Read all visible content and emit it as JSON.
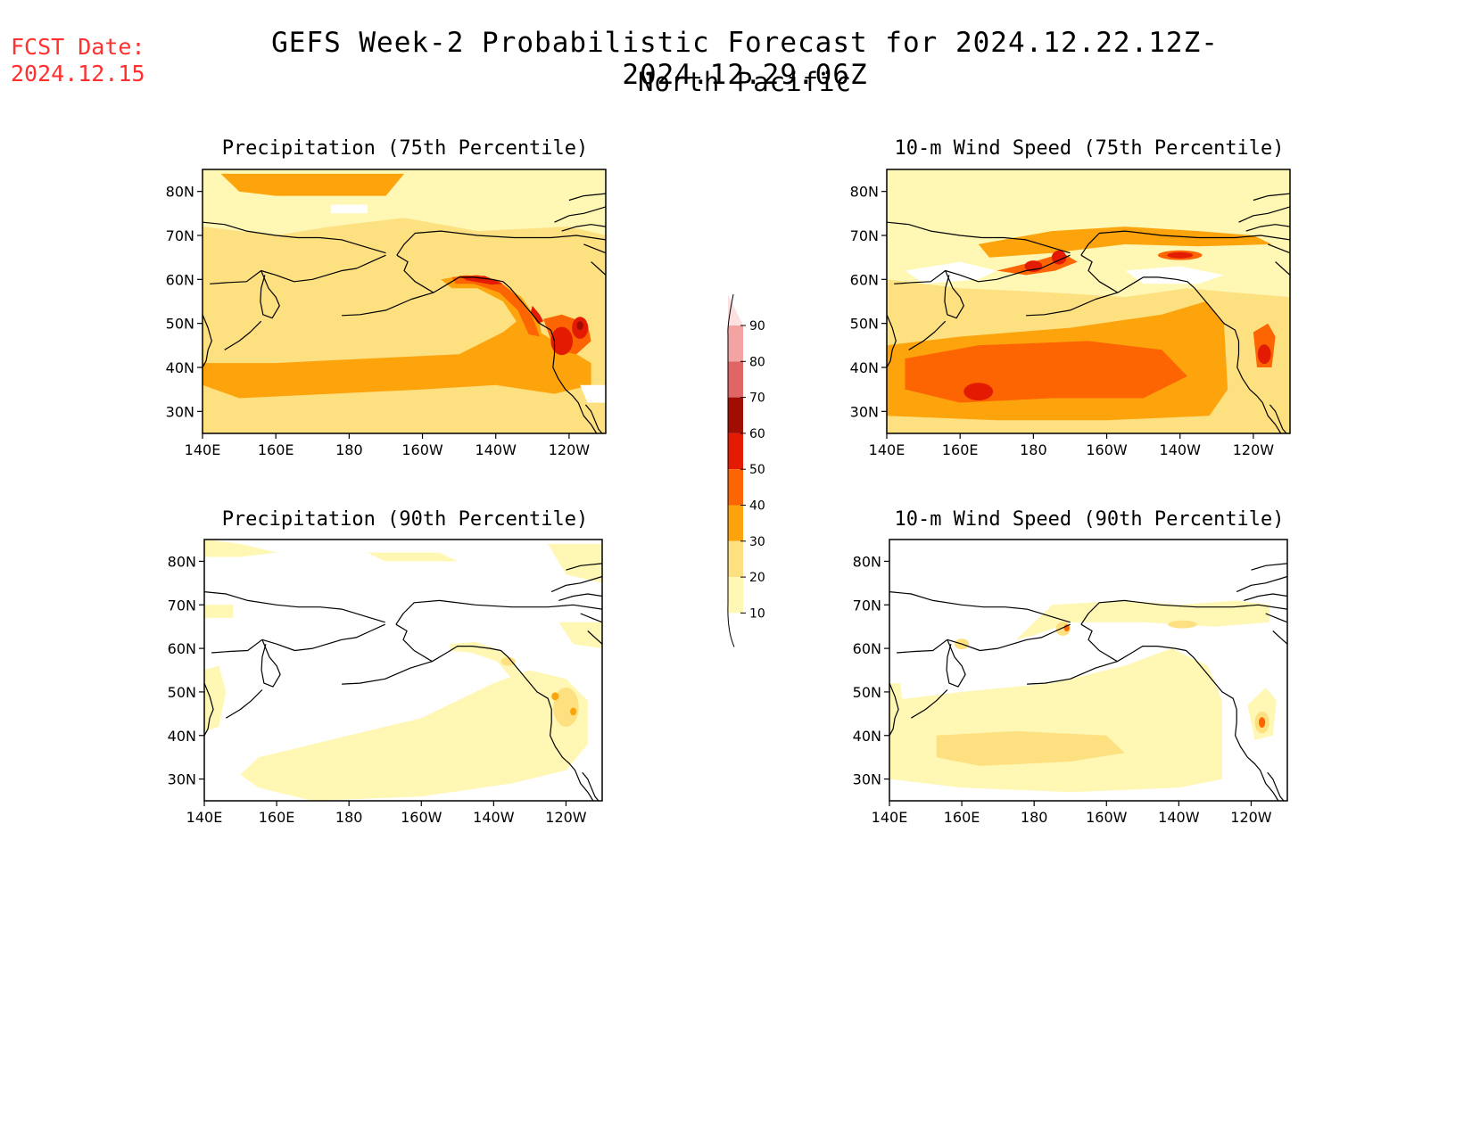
{
  "header": {
    "fcst_label": "FCST Date:",
    "fcst_date": "2024.12.15",
    "title": "GEFS Week-2 Probabilistic Forecast for 2024.12.22.12Z-2024.12.29.06Z",
    "subtitle": "North Pacific"
  },
  "axes": {
    "lon_ticks": [
      "140E",
      "160E",
      "180",
      "160W",
      "140W",
      "120W"
    ],
    "lat_ticks": [
      "80N",
      "70N",
      "60N",
      "50N",
      "40N",
      "30N"
    ]
  },
  "panels": [
    {
      "id": "precip75",
      "title": "Precipitation (75th Percentile)"
    },
    {
      "id": "wind75",
      "title": "10-m Wind Speed (75th Percentile)"
    },
    {
      "id": "precip90",
      "title": "Precipitation (90th Percentile)"
    },
    {
      "id": "wind90",
      "title": "10-m Wind Speed (90th Percentile)"
    }
  ],
  "colorbar": {
    "labels": [
      "10",
      "20",
      "30",
      "40",
      "50",
      "60",
      "70",
      "80",
      "90"
    ],
    "colors": [
      "#fff7b3",
      "#fde080",
      "#fda30c",
      "#fd6402",
      "#e21b02",
      "#a00d02",
      "#e06666",
      "#f4a3a3",
      "#fde1e1"
    ]
  },
  "chart_data": [
    {
      "type": "heatmap",
      "title": "Precipitation (75th Percentile)",
      "x_ticks": [
        "140E",
        "160E",
        "180",
        "160W",
        "140W",
        "120W"
      ],
      "y_ticks": [
        "80N",
        "70N",
        "60N",
        "50N",
        "40N",
        "30N"
      ],
      "levels": [
        10,
        20,
        30,
        40,
        50,
        60,
        70,
        80,
        90
      ]
    },
    {
      "type": "heatmap",
      "title": "10-m Wind Speed (75th Percentile)",
      "x_ticks": [
        "140E",
        "160E",
        "180",
        "160W",
        "140W",
        "120W"
      ],
      "y_ticks": [
        "80N",
        "70N",
        "60N",
        "50N",
        "40N",
        "30N"
      ],
      "levels": [
        10,
        20,
        30,
        40,
        50,
        60,
        70,
        80,
        90
      ]
    },
    {
      "type": "heatmap",
      "title": "Precipitation (90th Percentile)",
      "x_ticks": [
        "140E",
        "160E",
        "180",
        "160W",
        "140W",
        "120W"
      ],
      "y_ticks": [
        "80N",
        "70N",
        "60N",
        "50N",
        "40N",
        "30N"
      ],
      "levels": [
        10,
        20,
        30,
        40,
        50,
        60,
        70,
        80,
        90
      ]
    },
    {
      "type": "heatmap",
      "title": "10-m Wind Speed (90th Percentile)",
      "x_ticks": [
        "140E",
        "160E",
        "180",
        "160W",
        "140W",
        "120W"
      ],
      "y_ticks": [
        "80N",
        "70N",
        "60N",
        "50N",
        "40N",
        "30N"
      ],
      "levels": [
        10,
        20,
        30,
        40,
        50,
        60,
        70,
        80,
        90
      ]
    }
  ]
}
